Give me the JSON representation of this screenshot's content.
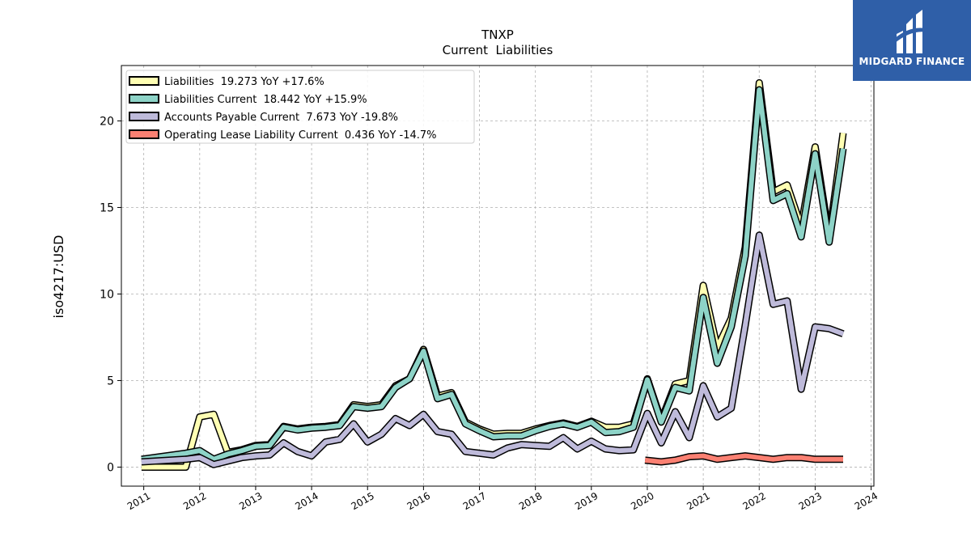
{
  "brand": {
    "name": "MIDGARD FINANCE",
    "icon": "midgard-logo-icon",
    "colors": {
      "background": "#2f5fa8",
      "text": "#ffffff"
    }
  },
  "chart_data": {
    "type": "line",
    "title": "TNXP",
    "subtitle": "Current  Liabilities",
    "ylabel": "iso4217:USD",
    "xlabel": "",
    "xlim": [
      2010.6,
      2024.05
    ],
    "ylim": [
      -1.1,
      23.2
    ],
    "x_ticks": [
      "2011",
      "2012",
      "2013",
      "2014",
      "2015",
      "2016",
      "2017",
      "2018",
      "2019",
      "2020",
      "2021",
      "2022",
      "2023",
      "2024"
    ],
    "y_ticks": [
      "0",
      "5",
      "10",
      "15",
      "20"
    ],
    "grid": true,
    "legend_position": "top-left",
    "series": [
      {
        "name": "Liabilities  19.273 YoY +17.6%",
        "color": "#ffffb3",
        "points": [
          [
            2010.96,
            0.0
          ],
          [
            2011.75,
            0.0
          ],
          [
            2012.0,
            2.9
          ],
          [
            2012.25,
            3.05
          ],
          [
            2012.5,
            0.85
          ],
          [
            2012.75,
            1.0
          ],
          [
            2013.0,
            1.25
          ],
          [
            2013.25,
            1.3
          ],
          [
            2013.5,
            2.35
          ],
          [
            2013.75,
            2.2
          ],
          [
            2014.0,
            2.3
          ],
          [
            2014.25,
            2.35
          ],
          [
            2014.5,
            2.45
          ],
          [
            2014.75,
            3.6
          ],
          [
            2015.0,
            3.5
          ],
          [
            2015.25,
            3.6
          ],
          [
            2015.5,
            4.7
          ],
          [
            2015.75,
            5.1
          ],
          [
            2016.0,
            6.8
          ],
          [
            2016.25,
            4.1
          ],
          [
            2016.5,
            4.3
          ],
          [
            2016.75,
            2.6
          ],
          [
            2017.0,
            2.2
          ],
          [
            2017.25,
            1.9
          ],
          [
            2017.5,
            1.95
          ],
          [
            2017.75,
            1.95
          ],
          [
            2018.0,
            2.2
          ],
          [
            2018.25,
            2.4
          ],
          [
            2018.5,
            2.55
          ],
          [
            2018.75,
            2.35
          ],
          [
            2019.0,
            2.65
          ],
          [
            2019.25,
            2.3
          ],
          [
            2019.5,
            2.3
          ],
          [
            2019.75,
            2.5
          ],
          [
            2020.0,
            5.1
          ],
          [
            2020.25,
            2.7
          ],
          [
            2020.5,
            4.8
          ],
          [
            2020.75,
            5.0
          ],
          [
            2021.0,
            10.5
          ],
          [
            2021.25,
            6.9
          ],
          [
            2021.5,
            8.6
          ],
          [
            2021.75,
            12.7
          ],
          [
            2022.0,
            22.2
          ],
          [
            2022.25,
            15.9
          ],
          [
            2022.5,
            16.3
          ],
          [
            2022.75,
            13.9
          ],
          [
            2023.0,
            18.5
          ],
          [
            2023.25,
            13.3
          ],
          [
            2023.5,
            19.3
          ]
        ]
      },
      {
        "name": "Liabilities Current  18.442 YoY +15.9%",
        "color": "#8dd3c7",
        "points": [
          [
            2010.96,
            0.45
          ],
          [
            2011.75,
            0.8
          ],
          [
            2012.0,
            0.95
          ],
          [
            2012.25,
            0.45
          ],
          [
            2012.5,
            0.75
          ],
          [
            2012.75,
            0.95
          ],
          [
            2013.0,
            1.2
          ],
          [
            2013.25,
            1.25
          ],
          [
            2013.5,
            2.3
          ],
          [
            2013.75,
            2.15
          ],
          [
            2014.0,
            2.25
          ],
          [
            2014.25,
            2.3
          ],
          [
            2014.5,
            2.4
          ],
          [
            2014.75,
            3.5
          ],
          [
            2015.0,
            3.4
          ],
          [
            2015.25,
            3.5
          ],
          [
            2015.5,
            4.6
          ],
          [
            2015.75,
            5.1
          ],
          [
            2016.0,
            6.7
          ],
          [
            2016.25,
            3.95
          ],
          [
            2016.5,
            4.2
          ],
          [
            2016.75,
            2.5
          ],
          [
            2017.0,
            2.1
          ],
          [
            2017.25,
            1.75
          ],
          [
            2017.5,
            1.8
          ],
          [
            2017.75,
            1.8
          ],
          [
            2018.0,
            2.1
          ],
          [
            2018.25,
            2.35
          ],
          [
            2018.5,
            2.5
          ],
          [
            2018.75,
            2.3
          ],
          [
            2019.0,
            2.6
          ],
          [
            2019.25,
            2.0
          ],
          [
            2019.5,
            2.05
          ],
          [
            2019.75,
            2.3
          ],
          [
            2020.0,
            5.05
          ],
          [
            2020.25,
            2.6
          ],
          [
            2020.5,
            4.6
          ],
          [
            2020.75,
            4.4
          ],
          [
            2021.0,
            9.8
          ],
          [
            2021.25,
            6.0
          ],
          [
            2021.5,
            8.1
          ],
          [
            2021.75,
            12.2
          ],
          [
            2022.0,
            21.8
          ],
          [
            2022.25,
            15.4
          ],
          [
            2022.5,
            15.8
          ],
          [
            2022.75,
            13.3
          ],
          [
            2023.0,
            18.1
          ],
          [
            2023.25,
            13.0
          ],
          [
            2023.5,
            18.4
          ]
        ]
      },
      {
        "name": "Accounts Payable Current  7.673 YoY -19.8%",
        "color": "#bebada",
        "points": [
          [
            2010.96,
            0.3
          ],
          [
            2011.75,
            0.45
          ],
          [
            2012.0,
            0.55
          ],
          [
            2012.25,
            0.15
          ],
          [
            2012.5,
            0.35
          ],
          [
            2012.75,
            0.55
          ],
          [
            2013.0,
            0.65
          ],
          [
            2013.25,
            0.7
          ],
          [
            2013.5,
            1.4
          ],
          [
            2013.75,
            0.9
          ],
          [
            2014.0,
            0.65
          ],
          [
            2014.25,
            1.45
          ],
          [
            2014.5,
            1.6
          ],
          [
            2014.75,
            2.5
          ],
          [
            2015.0,
            1.45
          ],
          [
            2015.25,
            1.9
          ],
          [
            2015.5,
            2.8
          ],
          [
            2015.75,
            2.4
          ],
          [
            2016.0,
            3.05
          ],
          [
            2016.25,
            2.05
          ],
          [
            2016.5,
            1.9
          ],
          [
            2016.75,
            0.9
          ],
          [
            2017.0,
            0.8
          ],
          [
            2017.25,
            0.7
          ],
          [
            2017.5,
            1.1
          ],
          [
            2017.75,
            1.3
          ],
          [
            2018.0,
            1.25
          ],
          [
            2018.25,
            1.2
          ],
          [
            2018.5,
            1.7
          ],
          [
            2018.75,
            1.05
          ],
          [
            2019.0,
            1.5
          ],
          [
            2019.25,
            1.05
          ],
          [
            2019.5,
            0.95
          ],
          [
            2019.75,
            1.0
          ],
          [
            2020.0,
            3.1
          ],
          [
            2020.25,
            1.4
          ],
          [
            2020.5,
            3.2
          ],
          [
            2020.75,
            1.7
          ],
          [
            2021.0,
            4.7
          ],
          [
            2021.25,
            2.9
          ],
          [
            2021.5,
            3.4
          ],
          [
            2021.75,
            8.2
          ],
          [
            2022.0,
            13.4
          ],
          [
            2022.25,
            9.4
          ],
          [
            2022.5,
            9.6
          ],
          [
            2022.75,
            4.5
          ],
          [
            2023.0,
            8.1
          ],
          [
            2023.25,
            8.0
          ],
          [
            2023.5,
            7.7
          ]
        ]
      },
      {
        "name": "Operating Lease Liability Current  0.436 YoY -14.7%",
        "color": "#fb8072",
        "points": [
          [
            2019.96,
            0.4
          ],
          [
            2020.25,
            0.3
          ],
          [
            2020.5,
            0.4
          ],
          [
            2020.75,
            0.6
          ],
          [
            2021.0,
            0.65
          ],
          [
            2021.25,
            0.45
          ],
          [
            2021.5,
            0.55
          ],
          [
            2021.75,
            0.65
          ],
          [
            2022.0,
            0.55
          ],
          [
            2022.25,
            0.45
          ],
          [
            2022.5,
            0.55
          ],
          [
            2022.75,
            0.55
          ],
          [
            2023.0,
            0.45
          ],
          [
            2023.25,
            0.45
          ],
          [
            2023.5,
            0.45
          ]
        ]
      }
    ]
  }
}
